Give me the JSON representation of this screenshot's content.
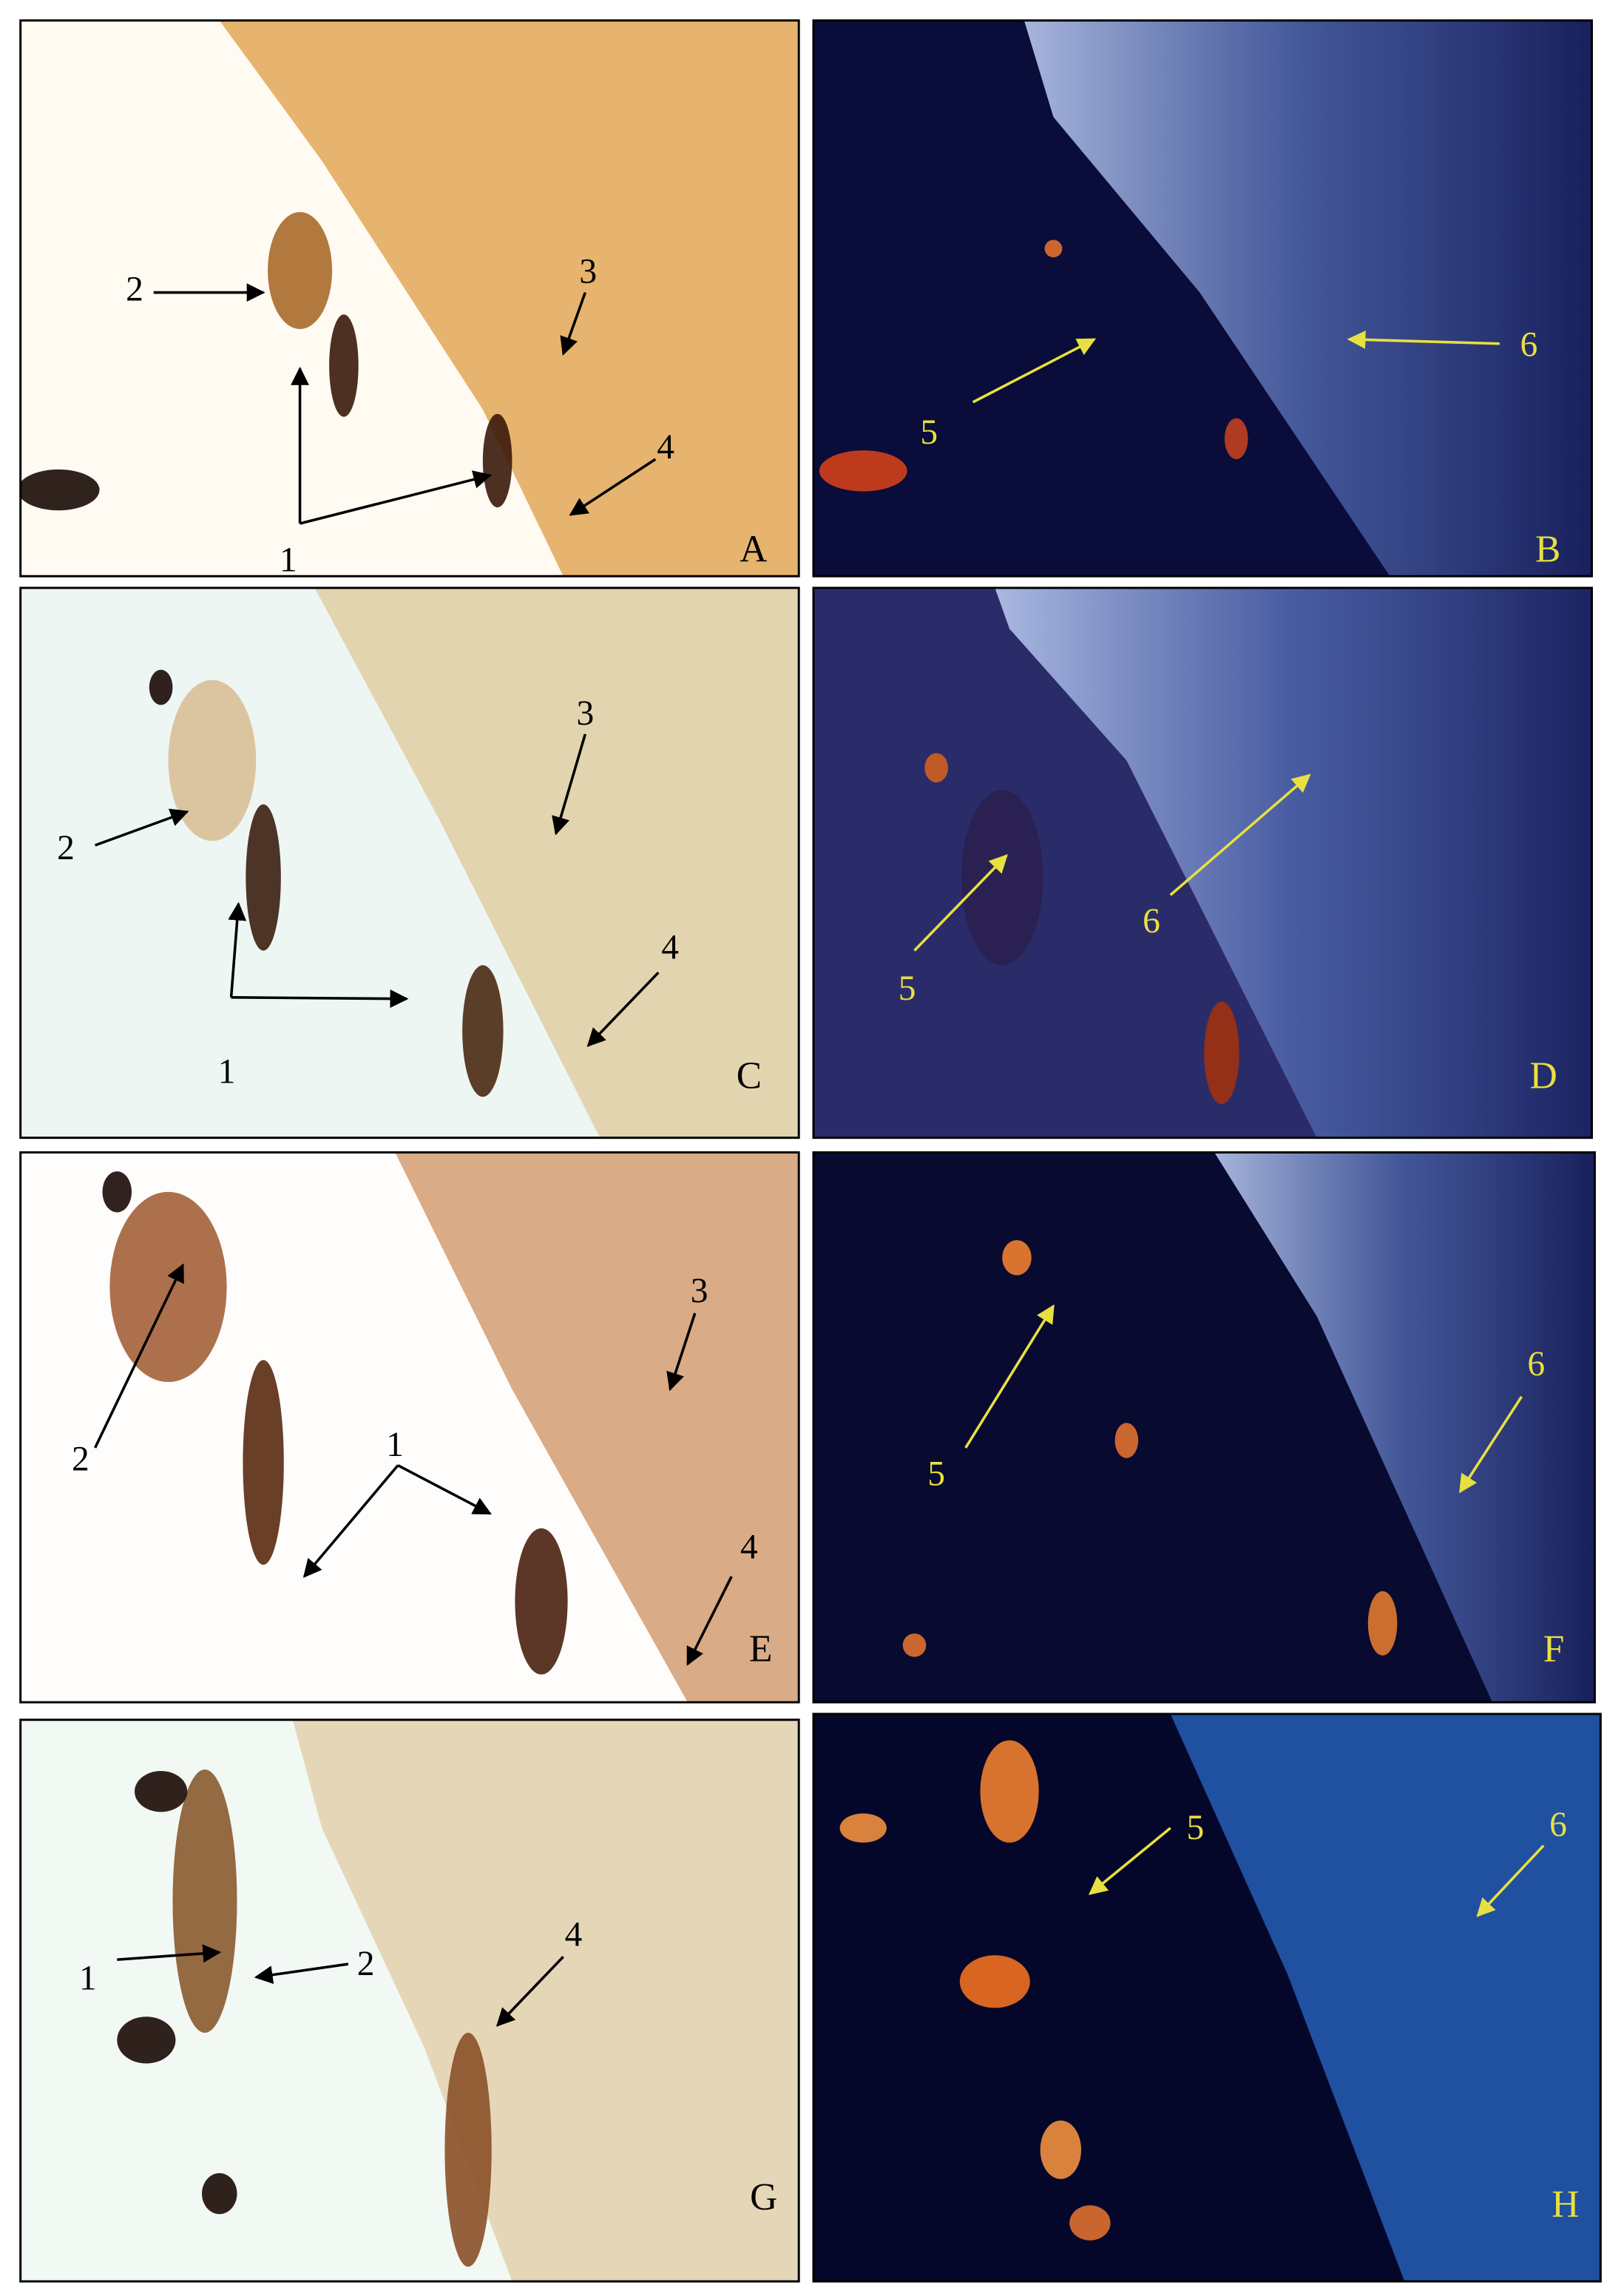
{
  "panels": [
    {
      "letter": "A",
      "labels": [
        "2",
        "3",
        "4",
        "1"
      ]
    },
    {
      "letter": "B",
      "labels": [
        "5",
        "6"
      ]
    },
    {
      "letter": "C",
      "labels": [
        "2",
        "3",
        "4",
        "1"
      ]
    },
    {
      "letter": "D",
      "labels": [
        "5",
        "6"
      ]
    },
    {
      "letter": "E",
      "labels": [
        "2",
        "1",
        "3",
        "4"
      ]
    },
    {
      "letter": "F",
      "labels": [
        "5",
        "6"
      ]
    },
    {
      "letter": "G",
      "labels": [
        "1",
        "2",
        "4"
      ]
    },
    {
      "letter": "H",
      "labels": [
        "5",
        "6"
      ]
    }
  ]
}
